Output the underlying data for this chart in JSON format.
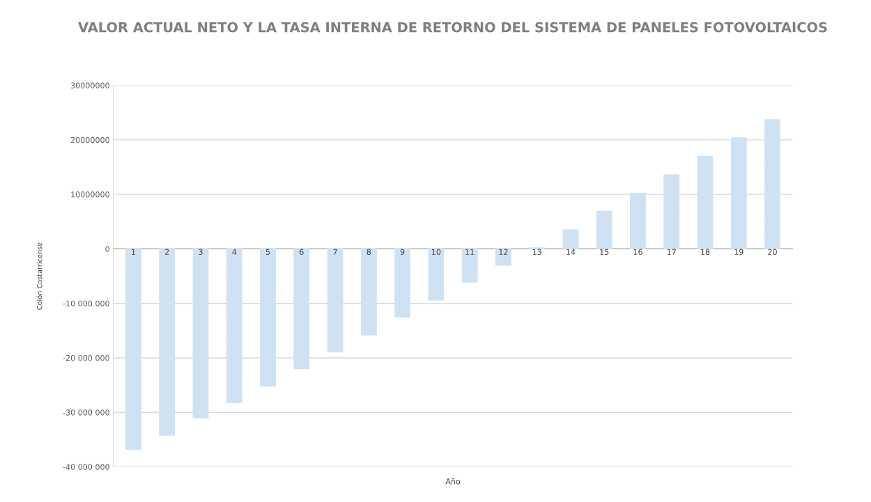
{
  "chart_data": {
    "type": "bar",
    "title": "VALOR ACTUAL NETO Y LA TASA INTERNA DE RETORNO DEL SISTEMA DE PANELES FOTOVOLTAICOS",
    "xlabel": "Año",
    "ylabel": "Colón Costarricense",
    "categories": [
      "1",
      "2",
      "3",
      "4",
      "5",
      "6",
      "7",
      "8",
      "9",
      "10",
      "11",
      "12",
      "13",
      "14",
      "15",
      "16",
      "17",
      "18",
      "19",
      "20"
    ],
    "values": [
      -36800000,
      -34200000,
      -31000000,
      -28200000,
      -25200000,
      -22000000,
      -18900000,
      -15800000,
      -12500000,
      -9400000,
      -6100000,
      -3000000,
      200000,
      3500000,
      6900000,
      10200000,
      13600000,
      17000000,
      20400000,
      23700000
    ],
    "color": "#cfe2f3",
    "ylim": [
      -40000000,
      30000000
    ],
    "yticks": [
      {
        "value": -40000000,
        "label": "-40 000 000"
      },
      {
        "value": -30000000,
        "label": "-30 000 000"
      },
      {
        "value": -20000000,
        "label": "-20 000 000"
      },
      {
        "value": -10000000,
        "label": "-10 000 000"
      },
      0,
      10000000,
      20000000,
      30000000
    ],
    "grid": "y"
  }
}
